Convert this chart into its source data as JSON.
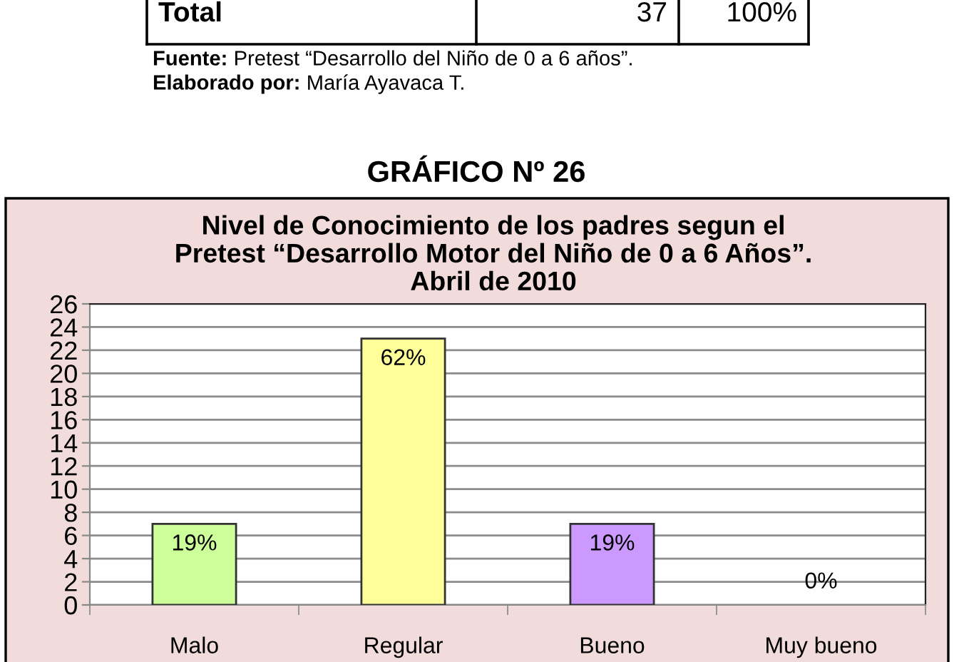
{
  "chart_data": {
    "type": "bar",
    "title": "Nivel de Conocimiento de los padres segun el\nPretest “Desarrollo Motor del Niño de 0 a 6 Años”.\nAbril de 2010",
    "categories": [
      "Malo",
      "Regular",
      "Bueno",
      "Muy bueno"
    ],
    "values": [
      7,
      23,
      7,
      0
    ],
    "colors": [
      "#ccff99",
      "#ffff99",
      "#cc99ff",
      null
    ],
    "ylim": [
      0,
      26
    ],
    "yticks": [
      0,
      2,
      4,
      6,
      8,
      10,
      12,
      14,
      16,
      18,
      20,
      22,
      24,
      26
    ],
    "grid": "y",
    "annotations": [
      "Total",
      "37",
      "100%",
      "Fuente:",
      "Pretest “Desarrollo del Niño de 0 a 6 años”.",
      "Elaborado por:",
      "María Ayavaca T.",
      "GRÁFICO Nº 26",
      {
        "text": "19%",
        "x": "Malo",
        "y": 7
      },
      {
        "text": "62%",
        "x": "Regular",
        "y": 23
      },
      {
        "text": "19%",
        "x": "Bueno",
        "y": 7
      },
      {
        "text": "0%",
        "x": "Muy bueno",
        "y": 0
      }
    ]
  }
}
